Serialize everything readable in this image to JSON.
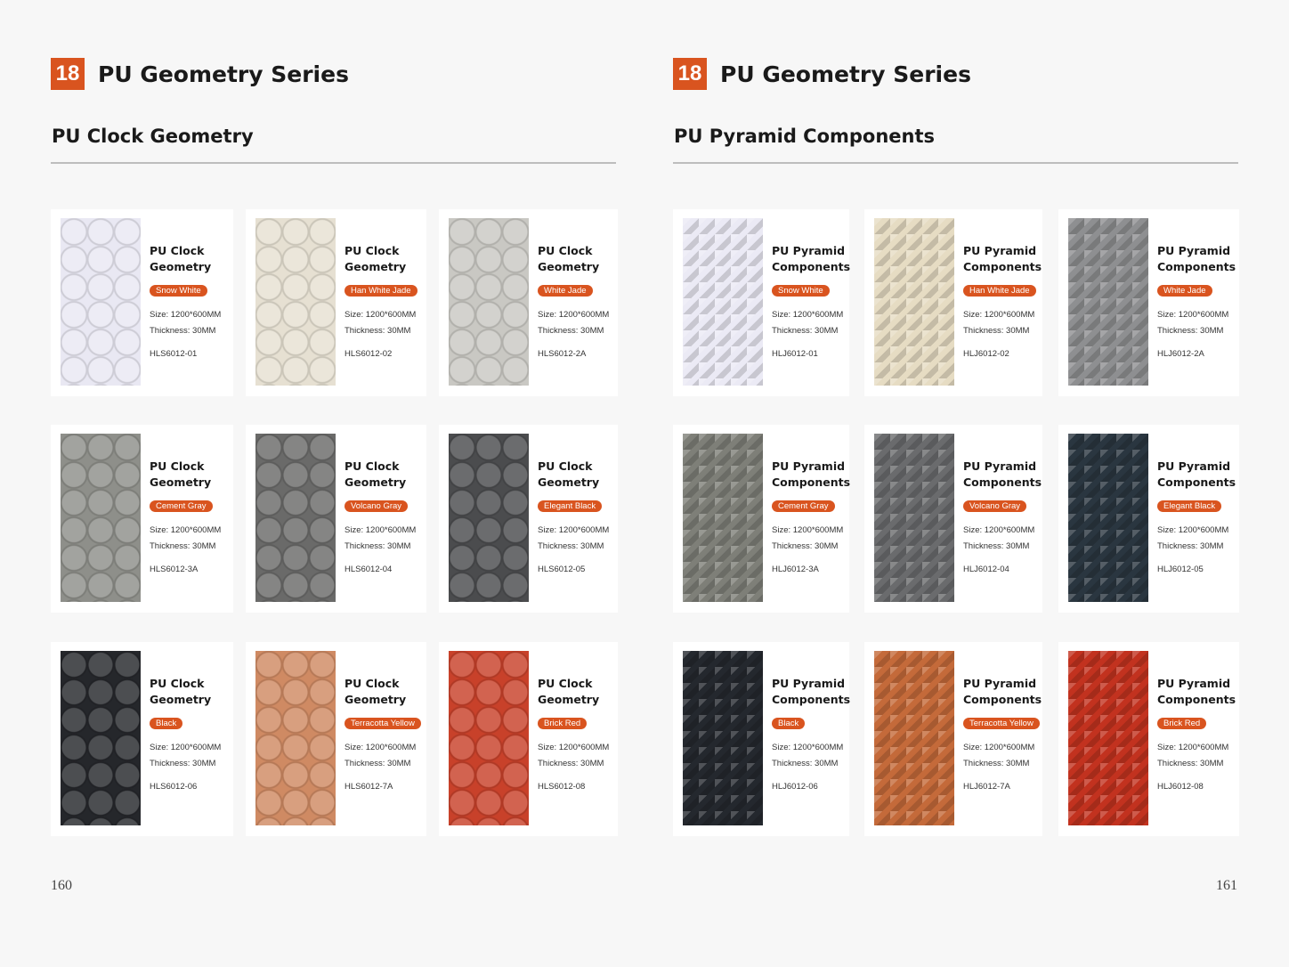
{
  "pages": [
    {
      "badge": "18",
      "title": "PU Geometry Series",
      "subtitle": "PU Clock Geometry",
      "page_number": "160",
      "products": [
        {
          "name": "PU Clock Geometry",
          "color": "Snow White",
          "size": "Size: 1200*600MM",
          "thickness": "Thickness: 30MM",
          "code": "HLS6012-01",
          "swatch": "#e9e8f3"
        },
        {
          "name": "PU Clock Geometry",
          "color": "Han White Jade",
          "size": "Size: 1200*600MM",
          "thickness": "Thickness: 30MM",
          "code": "HLS6012-02",
          "swatch": "#e6e0d2"
        },
        {
          "name": "PU Clock Geometry",
          "color": "White Jade",
          "size": "Size: 1200*600MM",
          "thickness": "Thickness: 30MM",
          "code": "HLS6012-2A",
          "swatch": "#c9c8c3"
        },
        {
          "name": "PU Clock Geometry",
          "color": "Cement Gray",
          "size": "Size: 1200*600MM",
          "thickness": "Thickness: 30MM",
          "code": "HLS6012-3A",
          "swatch": "#8e8f8a"
        },
        {
          "name": "PU Clock Geometry",
          "color": "Volcano Gray",
          "size": "Size: 1200*600MM",
          "thickness": "Thickness: 30MM",
          "code": "HLS6012-04",
          "swatch": "#6a6a69"
        },
        {
          "name": "PU Clock Geometry",
          "color": "Elegant Black",
          "size": "Size: 1200*600MM",
          "thickness": "Thickness: 30MM",
          "code": "HLS6012-05",
          "swatch": "#4b4c4e"
        },
        {
          "name": "PU Clock Geometry",
          "color": "Black",
          "size": "Size: 1200*600MM",
          "thickness": "Thickness: 30MM",
          "code": "HLS6012-06",
          "swatch": "#25272b"
        },
        {
          "name": "PU Clock Geometry",
          "color": "Terracotta Yellow",
          "size": "Size: 1200*600MM",
          "thickness": "Thickness: 30MM",
          "code": "HLS6012-7A",
          "swatch": "#cf8a63"
        },
        {
          "name": "PU Clock Geometry",
          "color": "Brick Red",
          "size": "Size: 1200*600MM",
          "thickness": "Thickness: 30MM",
          "code": "HLS6012-08",
          "swatch": "#c8412a"
        }
      ]
    },
    {
      "badge": "18",
      "title": "PU Geometry Series",
      "subtitle": "PU Pyramid Components",
      "page_number": "161",
      "products": [
        {
          "name": "PU Pyramid Components",
          "color": "Snow White",
          "size": "Size: 1200*600MM",
          "thickness": "Thickness: 30MM",
          "code": "HLJ6012-01",
          "swatch": "#ebeaf5"
        },
        {
          "name": "PU Pyramid Components",
          "color": "Han White Jade",
          "size": "Size: 1200*600MM",
          "thickness": "Thickness: 30MM",
          "code": "HLJ6012-02",
          "swatch": "#e6dcc3"
        },
        {
          "name": "PU Pyramid Components",
          "color": "White Jade",
          "size": "Size: 1200*600MM",
          "thickness": "Thickness: 30MM",
          "code": "HLJ6012-2A",
          "swatch": "#8e8f91"
        },
        {
          "name": "PU Pyramid Components",
          "color": "Cement Gray",
          "size": "Size: 1200*600MM",
          "thickness": "Thickness: 30MM",
          "code": "HLJ6012-3A",
          "swatch": "#7e7f78"
        },
        {
          "name": "PU Pyramid Components",
          "color": "Volcano Gray",
          "size": "Size: 1200*600MM",
          "thickness": "Thickness: 30MM",
          "code": "HLJ6012-04",
          "swatch": "#6a6b6d"
        },
        {
          "name": "PU Pyramid Components",
          "color": "Elegant Black",
          "size": "Size: 1200*600MM",
          "thickness": "Thickness: 30MM",
          "code": "HLJ6012-05",
          "swatch": "#2a3640"
        },
        {
          "name": "PU Pyramid Components",
          "color": "Black",
          "size": "Size: 1200*600MM",
          "thickness": "Thickness: 30MM",
          "code": "HLJ6012-06",
          "swatch": "#24282e"
        },
        {
          "name": "PU Pyramid Components",
          "color": "Terracotta Yellow",
          "size": "Size: 1200*600MM",
          "thickness": "Thickness: 30MM",
          "code": "HLJ6012-7A",
          "swatch": "#c46a3a"
        },
        {
          "name": "PU Pyramid Components",
          "color": "Brick Red",
          "size": "Size: 1200*600MM",
          "thickness": "Thickness: 30MM",
          "code": "HLJ6012-08",
          "swatch": "#c2321f"
        }
      ]
    }
  ]
}
